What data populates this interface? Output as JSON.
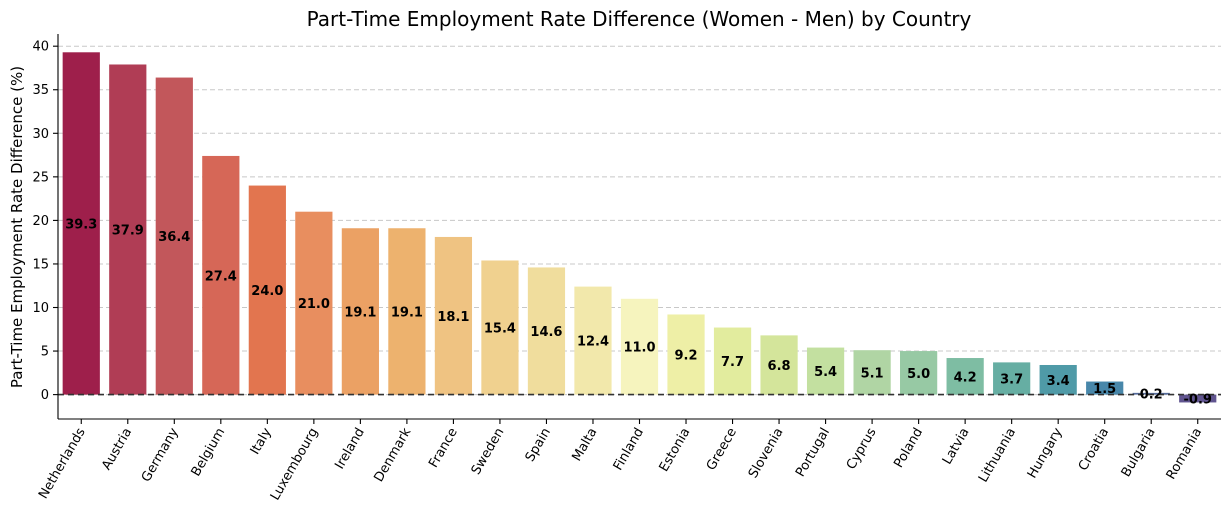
{
  "chart_data": {
    "type": "bar",
    "title": "Part-Time Employment Rate Difference (Women - Men) by Country",
    "xlabel": "",
    "ylabel": "Part-Time Employment Rate Difference (%)",
    "ylim": [
      -2.8,
      41.4
    ],
    "yticks": [
      0,
      5,
      10,
      15,
      20,
      25,
      30,
      35,
      40
    ],
    "grid": "horizontal dashed",
    "reference_line": 0,
    "categories": [
      "Netherlands",
      "Austria",
      "Germany",
      "Belgium",
      "Italy",
      "Luxembourg",
      "Ireland",
      "Denmark",
      "France",
      "Sweden",
      "Spain",
      "Malta",
      "Finland",
      "Estonia",
      "Greece",
      "Slovenia",
      "Portugal",
      "Cyprus",
      "Poland",
      "Latvia",
      "Lithuania",
      "Hungary",
      "Croatia",
      "Bulgaria",
      "Romania"
    ],
    "values": [
      39.3,
      37.9,
      36.4,
      27.4,
      24.0,
      21.0,
      19.1,
      19.1,
      18.1,
      15.4,
      14.6,
      12.4,
      11.0,
      9.2,
      7.7,
      6.8,
      5.4,
      5.1,
      5.0,
      4.2,
      3.7,
      3.4,
      1.5,
      0.2,
      -0.9
    ],
    "data_labels": [
      "39.3",
      "37.9",
      "36.4",
      "27.4",
      "24.0",
      "21.0",
      "19.1",
      "19.1",
      "18.1",
      "15.4",
      "14.6",
      "12.4",
      "11.0",
      "9.2",
      "7.7",
      "6.8",
      "5.4",
      "5.1",
      "5.0",
      "4.2",
      "3.7",
      "3.4",
      "1.5",
      "0.2",
      "-0.9"
    ],
    "colors": [
      "#9e1f4b",
      "#b03d55",
      "#c2575b",
      "#d66757",
      "#e2754f",
      "#e88e5f",
      "#eba164",
      "#edb26e",
      "#efc382",
      "#f0d18f",
      "#f0dd9d",
      "#f2e8ab",
      "#f6f4be",
      "#eeefa6",
      "#e2ec9e",
      "#d4e59b",
      "#c3e0a0",
      "#b0d5a4",
      "#97c9a4",
      "#7ebda3",
      "#66aea3",
      "#4f9aa7",
      "#4887aa",
      "#566c9c",
      "#60548f"
    ]
  }
}
